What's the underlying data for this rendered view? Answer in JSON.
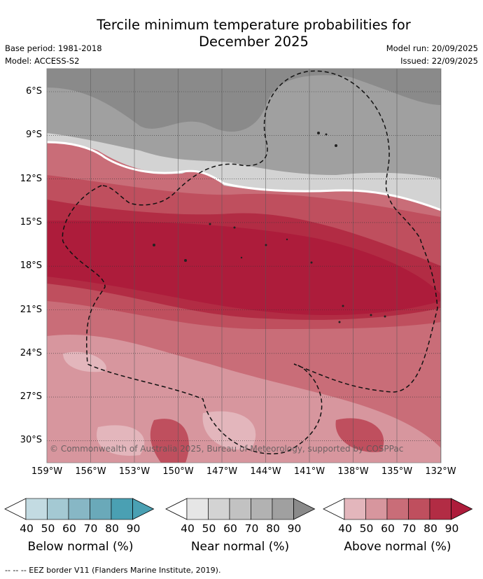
{
  "title_line1": "Tercile minimum temperature probabilities for",
  "title_line2": "December 2025",
  "base_period": "Base period: 1981-2018",
  "model": "Model: ACCESS-S2",
  "model_run": "Model run: 20/09/2025",
  "issued": "Issued: 22/09/2025",
  "lat_labels": [
    "6°S",
    "9°S",
    "12°S",
    "15°S",
    "18°S",
    "21°S",
    "24°S",
    "27°S",
    "30°S"
  ],
  "lon_labels": [
    "159°W",
    "156°W",
    "153°W",
    "150°W",
    "147°W",
    "144°W",
    "141°W",
    "138°W",
    "135°W",
    "132°W"
  ],
  "copyright": "© Commonwealth of Australia 2025, Bureau of Meteorology, supported by COSPPac",
  "colorbar_ticks": [
    "40",
    "50",
    "60",
    "70",
    "80",
    "90"
  ],
  "below_label": "Below normal (%)",
  "near_label": "Near normal (%)",
  "above_label": "Above normal (%)",
  "footer": "--  --  -- EEZ border V11 (Flanders Marine Institute, 2019).",
  "colors": {
    "below": [
      "#ffffff",
      "#c3dbe2",
      "#a4c9d3",
      "#87b7c5",
      "#6aa9b9",
      "#4aa0b3"
    ],
    "near": [
      "#ffffff",
      "#e6e6e6",
      "#d3d3d3",
      "#c2c2c2",
      "#b2b2b2",
      "#a0a0a0",
      "#8a8a8a"
    ],
    "above": [
      "#ffffff",
      "#e3b6bc",
      "#d7969e",
      "#c96d78",
      "#bf4f5e",
      "#b22c44",
      "#ad1c3b"
    ]
  }
}
